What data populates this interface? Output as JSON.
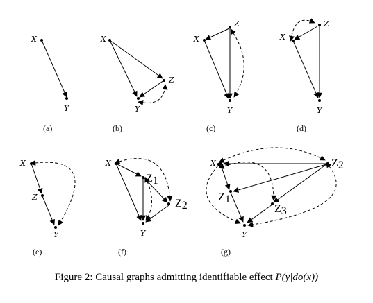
{
  "panels": [
    "(a)",
    "(b)",
    "(c)",
    "(d)",
    "(e)",
    "(f)",
    "(g)"
  ],
  "nodes": {
    "X": "X",
    "Y": "Y",
    "Z": "Z",
    "Z_base": "Z",
    "sub1": "1",
    "sub2": "2",
    "sub3": "3"
  },
  "caption": {
    "prefix": "Figure 2: Causal graphs admitting identifiable effect ",
    "math": "P(y|do(x))"
  }
}
